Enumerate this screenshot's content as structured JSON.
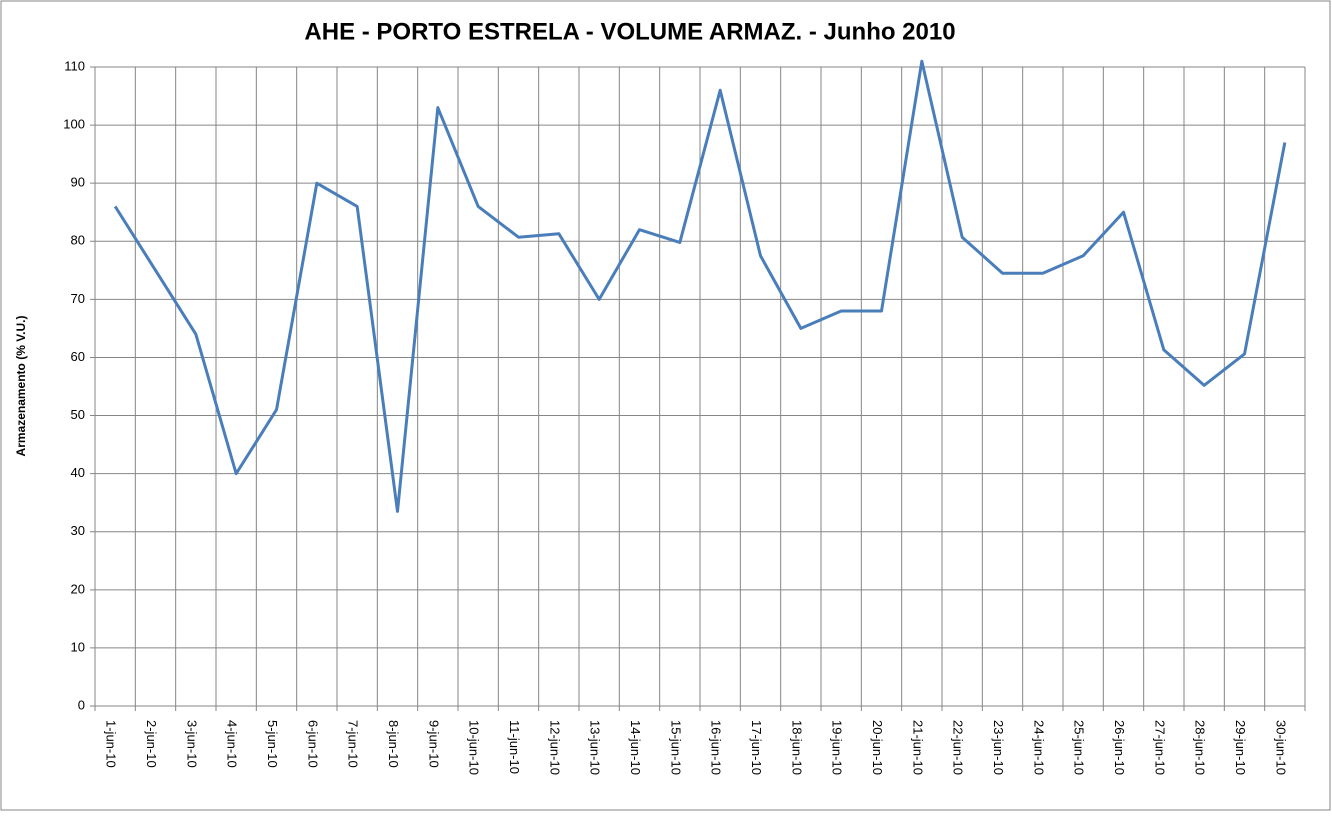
{
  "chart_data": {
    "type": "line",
    "title": "AHE - PORTO ESTRELA - VOLUME ARMAZ. -  Junho 2010",
    "y_label": "Armazenamento (% V.U.)",
    "categories": [
      "1-jun-10",
      "2-jun-10",
      "3-jun-10",
      "4-jun-10",
      "5-jun-10",
      "6-jun-10",
      "7-jun-10",
      "8-jun-10",
      "9-jun-10",
      "10-jun-10",
      "11-jun-10",
      "12-jun-10",
      "13-jun-10",
      "14-jun-10",
      "15-jun-10",
      "16-jun-10",
      "17-jun-10",
      "18-jun-10",
      "19-jun-10",
      "20-jun-10",
      "21-jun-10",
      "22-jun-10",
      "23-jun-10",
      "24-jun-10",
      "25-jun-10",
      "26-jun-10",
      "27-jun-10",
      "28-jun-10",
      "29-jun-10",
      "30-jun-10"
    ],
    "series": [
      {
        "color": "#4a7ebb",
        "values": [
          86,
          75,
          64,
          40,
          51,
          90,
          86,
          33.5,
          103,
          86,
          80.7,
          81.3,
          70,
          82,
          79.8,
          106,
          77.5,
          65,
          68,
          68,
          111,
          80.7,
          74.5,
          74.5,
          77.5,
          85,
          61.3,
          55.2,
          60.6,
          97
        ]
      }
    ],
    "ylim": [
      0,
      110
    ],
    "yticks": [
      0,
      10,
      20,
      30,
      40,
      50,
      60,
      70,
      80,
      90,
      100,
      110
    ],
    "grid": true
  }
}
